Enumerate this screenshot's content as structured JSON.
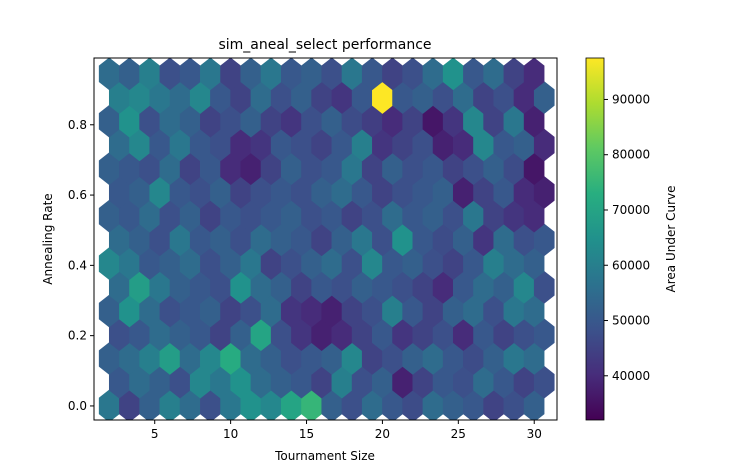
{
  "chart_data": {
    "type": "heatmap",
    "subtype": "hexbin",
    "title": "sim_aneal_select performance",
    "xlabel": "Tournament Size",
    "ylabel": "Annealing Rate",
    "colorbar_label": "Area Under Curve",
    "colormap": "viridis",
    "xlim": [
      1,
      31.5
    ],
    "ylim": [
      -0.04,
      0.99
    ],
    "x_ticks": [
      5,
      10,
      15,
      20,
      25,
      30
    ],
    "y_ticks": [
      0.0,
      0.2,
      0.4,
      0.6,
      0.8
    ],
    "x_tick_labels": [
      "5",
      "10",
      "15",
      "20",
      "25",
      "30"
    ],
    "y_tick_labels": [
      "0.0",
      "0.2",
      "0.4",
      "0.6",
      "0.8"
    ],
    "color_range": [
      32000,
      97500
    ],
    "colorbar_ticks": [
      40000,
      50000,
      60000,
      70000,
      80000,
      90000
    ],
    "colorbar_tick_labels": [
      "40000",
      "50000",
      "60000",
      "70000",
      "80000",
      "90000"
    ],
    "grid": false,
    "hex_grid": {
      "x_start": 2,
      "x_step": 1.333,
      "y_start": 0.0,
      "y_step": 0.0675,
      "columns": 22,
      "rows": 15
    },
    "cell_values": [
      [
        58000,
        45000,
        52000,
        60000,
        55000,
        48000,
        58000,
        65000,
        62000,
        70000,
        75000,
        52000,
        48000,
        55000,
        50000,
        47000,
        55000,
        52000,
        50000,
        45000,
        48000,
        52000
      ],
      [
        50000,
        55000,
        52000,
        48000,
        62000,
        58000,
        65000,
        55000,
        52000,
        50000,
        45000,
        60000,
        48000,
        52000,
        38000,
        45000,
        50000,
        48000,
        55000,
        50000,
        45000,
        48000
      ],
      [
        52000,
        55000,
        60000,
        68000,
        55000,
        62000,
        72000,
        55000,
        52000,
        48000,
        50000,
        52000,
        62000,
        45000,
        48000,
        52000,
        55000,
        50000,
        47000,
        52000,
        58000,
        55000
      ],
      [
        48000,
        50000,
        55000,
        52000,
        50000,
        45000,
        52000,
        70000,
        48000,
        42000,
        38000,
        40000,
        45000,
        50000,
        42000,
        45000,
        48000,
        40000,
        50000,
        45000,
        48000,
        50000
      ],
      [
        52000,
        65000,
        55000,
        48000,
        50000,
        52000,
        45000,
        48000,
        55000,
        42000,
        40000,
        38000,
        45000,
        48000,
        60000,
        50000,
        45000,
        52000,
        55000,
        48000,
        58000,
        55000
      ],
      [
        55000,
        68000,
        58000,
        52000,
        50000,
        48000,
        65000,
        55000,
        52000,
        45000,
        50000,
        48000,
        52000,
        50000,
        48000,
        45000,
        40000,
        50000,
        55000,
        52000,
        62000,
        48000
      ],
      [
        62000,
        58000,
        50000,
        52000,
        55000,
        48000,
        52000,
        58000,
        45000,
        48000,
        52000,
        55000,
        48000,
        62000,
        50000,
        52000,
        48000,
        45000,
        50000,
        60000,
        55000,
        52000
      ],
      [
        55000,
        52000,
        48000,
        58000,
        50000,
        52000,
        48000,
        55000,
        52000,
        50000,
        45000,
        52000,
        58000,
        48000,
        65000,
        50000,
        47000,
        52000,
        42000,
        55000,
        48000,
        50000
      ],
      [
        52000,
        50000,
        55000,
        48000,
        52000,
        45000,
        50000,
        48000,
        50000,
        52000,
        48000,
        50000,
        45000,
        48000,
        55000,
        50000,
        52000,
        48000,
        58000,
        45000,
        42000,
        40000
      ],
      [
        50000,
        52000,
        62000,
        50000,
        48000,
        52000,
        45000,
        48000,
        50000,
        48000,
        52000,
        55000,
        50000,
        45000,
        48000,
        50000,
        52000,
        38000,
        45000,
        50000,
        40000,
        38000
      ],
      [
        52000,
        50000,
        48000,
        55000,
        45000,
        50000,
        40000,
        38000,
        45000,
        52000,
        48000,
        50000,
        58000,
        45000,
        52000,
        48000,
        50000,
        45000,
        48000,
        52000,
        47000,
        36000
      ],
      [
        55000,
        62000,
        50000,
        58000,
        50000,
        48000,
        40000,
        42000,
        50000,
        48000,
        45000,
        50000,
        60000,
        42000,
        45000,
        48000,
        38000,
        40000,
        62000,
        50000,
        52000,
        40000
      ],
      [
        52000,
        65000,
        48000,
        55000,
        52000,
        45000,
        48000,
        52000,
        45000,
        42000,
        48000,
        52000,
        47000,
        44000,
        40000,
        45000,
        36000,
        42000,
        62000,
        45000,
        58000,
        38000
      ],
      [
        60000,
        62000,
        58000,
        55000,
        62000,
        50000,
        45000,
        55000,
        48000,
        52000,
        45000,
        42000,
        50000,
        97500,
        50000,
        52000,
        48000,
        55000,
        45000,
        48000,
        40000,
        52000
      ],
      [
        55000,
        52000,
        60000,
        48000,
        50000,
        58000,
        45000,
        52000,
        58000,
        50000,
        52000,
        48000,
        58000,
        50000,
        45000,
        48000,
        55000,
        65000,
        50000,
        55000,
        45000,
        40000
      ]
    ]
  }
}
